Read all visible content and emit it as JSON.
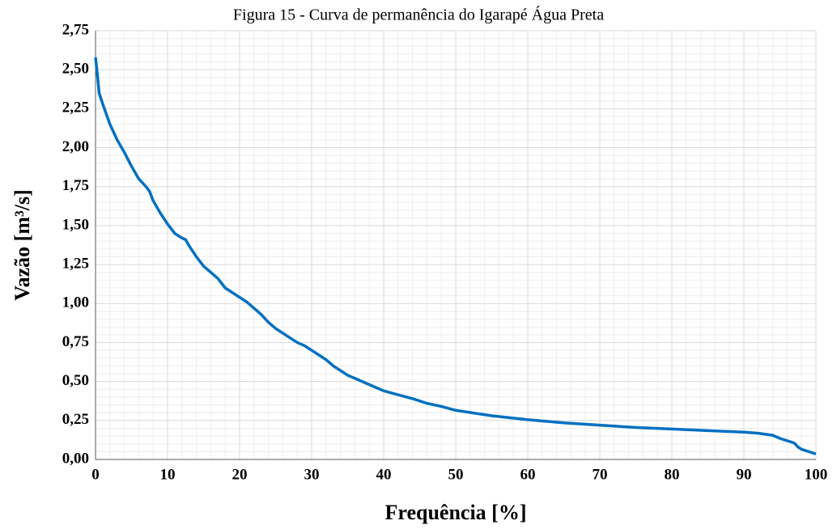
{
  "chart_data": {
    "type": "line",
    "title": "Figura  15 - Curva de permanência do Igarapé Água Preta",
    "xlabel": "Frequência [%]",
    "ylabel": "Vazão [m³/s]",
    "x": [
      0,
      0.3,
      0.5,
      1,
      2,
      3,
      4,
      5,
      6,
      7,
      7.5,
      8,
      9,
      10,
      11,
      12,
      12.5,
      13,
      14,
      15,
      16,
      17,
      18,
      19,
      20,
      21,
      22,
      23,
      24,
      25,
      26,
      27,
      28,
      29,
      30,
      31,
      32,
      33,
      34,
      35,
      36,
      37,
      38,
      39,
      40,
      42,
      44,
      46,
      48,
      50,
      55,
      60,
      65,
      70,
      75,
      80,
      85,
      90,
      92,
      94,
      95,
      96,
      97,
      97.5,
      98,
      99,
      100
    ],
    "series": [
      {
        "name": "Vazão",
        "color": "#0070c0",
        "values": [
          2.58,
          2.45,
          2.35,
          2.28,
          2.15,
          2.05,
          1.97,
          1.88,
          1.8,
          1.75,
          1.72,
          1.66,
          1.58,
          1.51,
          1.45,
          1.42,
          1.41,
          1.37,
          1.3,
          1.24,
          1.2,
          1.16,
          1.1,
          1.07,
          1.04,
          1.01,
          0.97,
          0.93,
          0.88,
          0.84,
          0.81,
          0.78,
          0.75,
          0.73,
          0.7,
          0.67,
          0.64,
          0.6,
          0.57,
          0.54,
          0.52,
          0.5,
          0.48,
          0.46,
          0.44,
          0.415,
          0.39,
          0.36,
          0.34,
          0.315,
          0.28,
          0.255,
          0.235,
          0.22,
          0.205,
          0.195,
          0.185,
          0.175,
          0.168,
          0.155,
          0.135,
          0.12,
          0.105,
          0.08,
          0.065,
          0.05,
          0.035
        ]
      }
    ],
    "xlim": [
      0,
      100
    ],
    "xticks": [
      0,
      10,
      20,
      30,
      40,
      50,
      60,
      70,
      80,
      90,
      100
    ],
    "ylim": [
      0,
      2.75
    ],
    "yticks": [
      {
        "value": 0,
        "label": "0,00"
      },
      {
        "value": 0.25,
        "label": "0,25"
      },
      {
        "value": 0.5,
        "label": "0,50"
      },
      {
        "value": 0.75,
        "label": "0,75"
      },
      {
        "value": 1,
        "label": "1,00"
      },
      {
        "value": 1.25,
        "label": "1,25"
      },
      {
        "value": 1.5,
        "label": "1,50"
      },
      {
        "value": 1.75,
        "label": "1,75"
      },
      {
        "value": 2,
        "label": "2,00"
      },
      {
        "value": 2.25,
        "label": "2,25"
      },
      {
        "value": 2.5,
        "label": "2,50"
      },
      {
        "value": 2.75,
        "label": "2,75"
      }
    ],
    "grid": true
  }
}
